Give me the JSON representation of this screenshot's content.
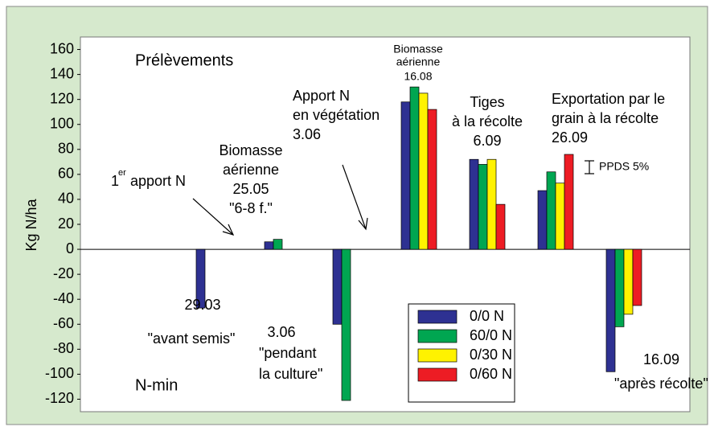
{
  "chart_data": {
    "type": "bar",
    "y_label": "Kg N/ha",
    "categories": [
      null,
      null,
      null,
      null,
      null,
      null,
      null
    ],
    "series": [
      {
        "name": "0/0 N",
        "color": "#2e3192",
        "values": [
          -47,
          6,
          -60,
          118,
          72,
          47,
          -98
        ]
      },
      {
        "name": "60/0 N",
        "color": "#00a651",
        "values": [
          null,
          8,
          -121,
          130,
          68,
          62,
          -62
        ]
      },
      {
        "name": "0/30 N",
        "color": "#fff200",
        "values": [
          null,
          null,
          null,
          125,
          72,
          53,
          -52
        ]
      },
      {
        "name": "0/60 N",
        "color": "#ed1c24",
        "values": [
          null,
          null,
          null,
          112,
          36,
          76,
          -45
        ]
      }
    ],
    "ylim": [
      -130,
      170
    ],
    "yticks": [
      -120,
      -100,
      -80,
      -60,
      -40,
      -20,
      0,
      20,
      40,
      60,
      80,
      100,
      120,
      140,
      160
    ],
    "grid": false,
    "annotations": [
      "Prélèvements",
      "N-min",
      "1",
      "er",
      "apport N",
      "Biomasse",
      "aérienne",
      "25.05",
      "\"6-8 f.\"",
      "Apport N",
      "en végétation",
      "3.06",
      "Biomasse",
      "aérienne",
      "16.08",
      "Tiges",
      "à la récolte",
      "6.09",
      "Exportation par le",
      "grain à la récolte",
      "26.09",
      "PPDS 5%",
      "29.03",
      "\"avant semis\"",
      "3.06",
      "\"pendant",
      "la culture\"",
      "16.09",
      "\"après récolte\""
    ]
  }
}
